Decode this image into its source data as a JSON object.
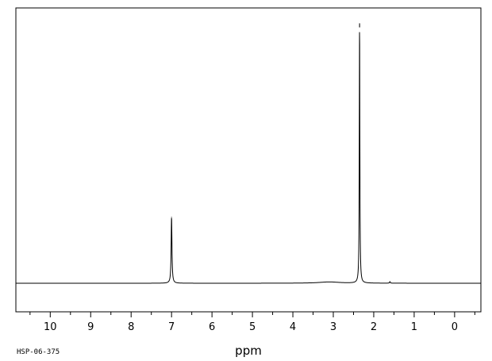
{
  "chart_data": {
    "type": "line",
    "xlabel": "ppm",
    "ylabel": "",
    "title": "",
    "spectrum_id": "HSP-06-375",
    "x_reversed": true,
    "xlim": [
      10.85,
      -0.65
    ],
    "ylim": [
      -0.11,
      1.06
    ],
    "x_ticks_major": [
      10,
      9,
      8,
      7,
      6,
      5,
      4,
      3,
      2,
      1,
      0
    ],
    "x_tick_labels": [
      "10",
      "9",
      "8",
      "7",
      "6",
      "5",
      "4",
      "3",
      "2",
      "1",
      "0"
    ],
    "x_ticks_minor": [
      10.5,
      9.5,
      8.5,
      7.5,
      6.5,
      5.5,
      4.5,
      3.5,
      2.5,
      1.5,
      0.5,
      -0.5
    ],
    "grid": false,
    "legend": "none",
    "line_color": "#000000",
    "peaks": [
      {
        "shift": 7.0,
        "height": 0.255,
        "width": 0.012
      },
      {
        "shift": 2.35,
        "height": 1.0,
        "width": 0.008
      },
      {
        "shift": 3.1,
        "height": 0.005,
        "width": 0.3
      },
      {
        "shift": 1.6,
        "height": 0.006,
        "width": 0.01
      }
    ]
  }
}
